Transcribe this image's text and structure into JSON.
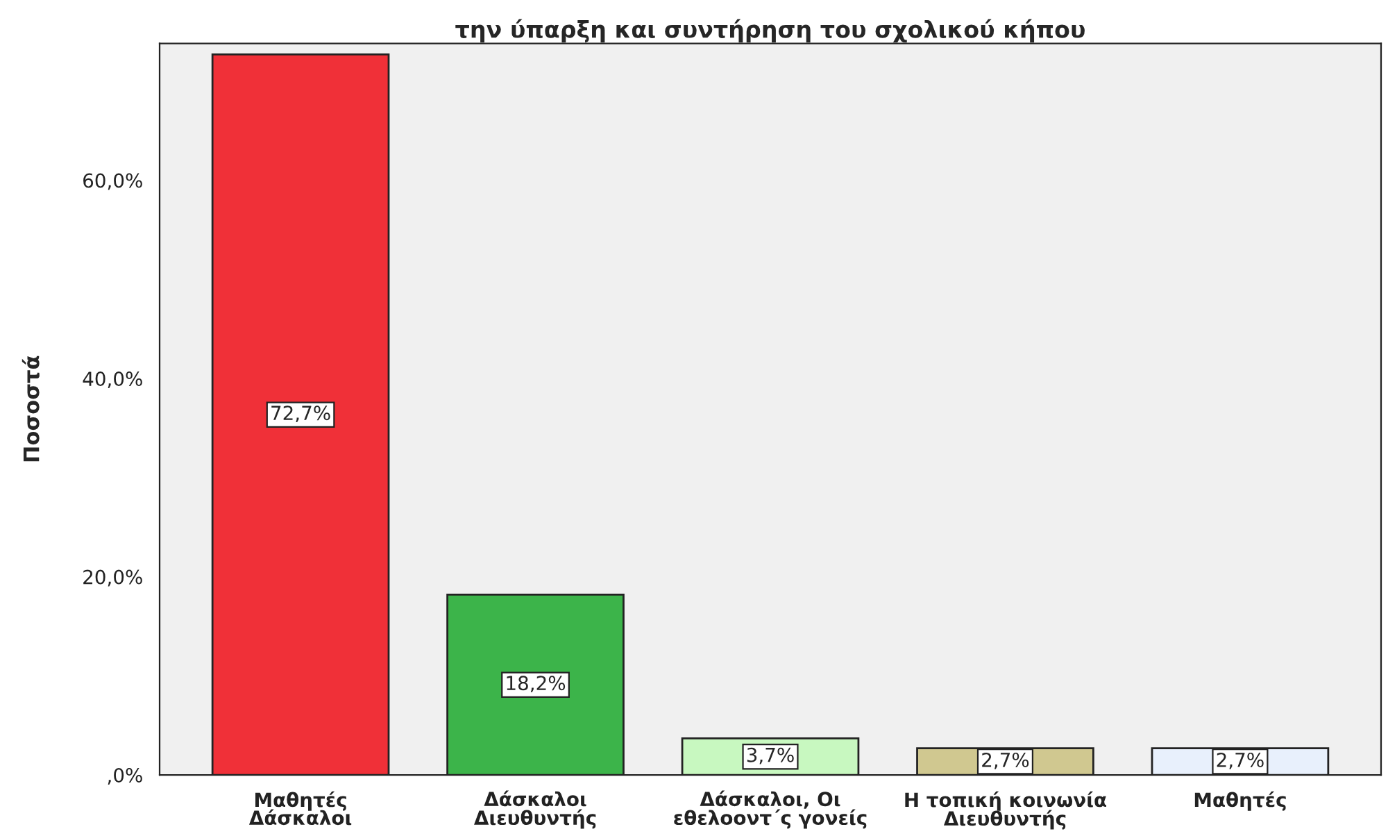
{
  "chart_data": {
    "type": "bar",
    "title": "την ύπαρξη και συντήρηση του σχολικού κήπου",
    "ylabel": "Ποσοστά",
    "categories": [
      "Μαθητές\nΔάσκαλοι",
      "Δάσκαλοι\nΔιευθυντής",
      "Δάσκαλοι, Οι\nεθελοοντ΄ς γονείς",
      "Η τοπική κοινωνία\nΔιευθυντής",
      "Μαθητές"
    ],
    "values": [
      72.7,
      18.2,
      3.7,
      2.7,
      2.7
    ],
    "colors": [
      "#f03038",
      "#3cb44a",
      "#c8f8c0",
      "#d0c890",
      "#e8f0fc"
    ],
    "value_labels": [
      "72,7%",
      "18,2%",
      "3,7%",
      "2,7%",
      "2,7%"
    ],
    "ylim": [
      0,
      73.8
    ],
    "yticks": [
      {
        "value": 0,
        "label": ",0%"
      },
      {
        "value": 20,
        "label": "20,0%"
      },
      {
        "value": 40,
        "label": "40,0%"
      },
      {
        "value": 60,
        "label": "60,0%"
      }
    ],
    "grid": false,
    "legend": false
  }
}
